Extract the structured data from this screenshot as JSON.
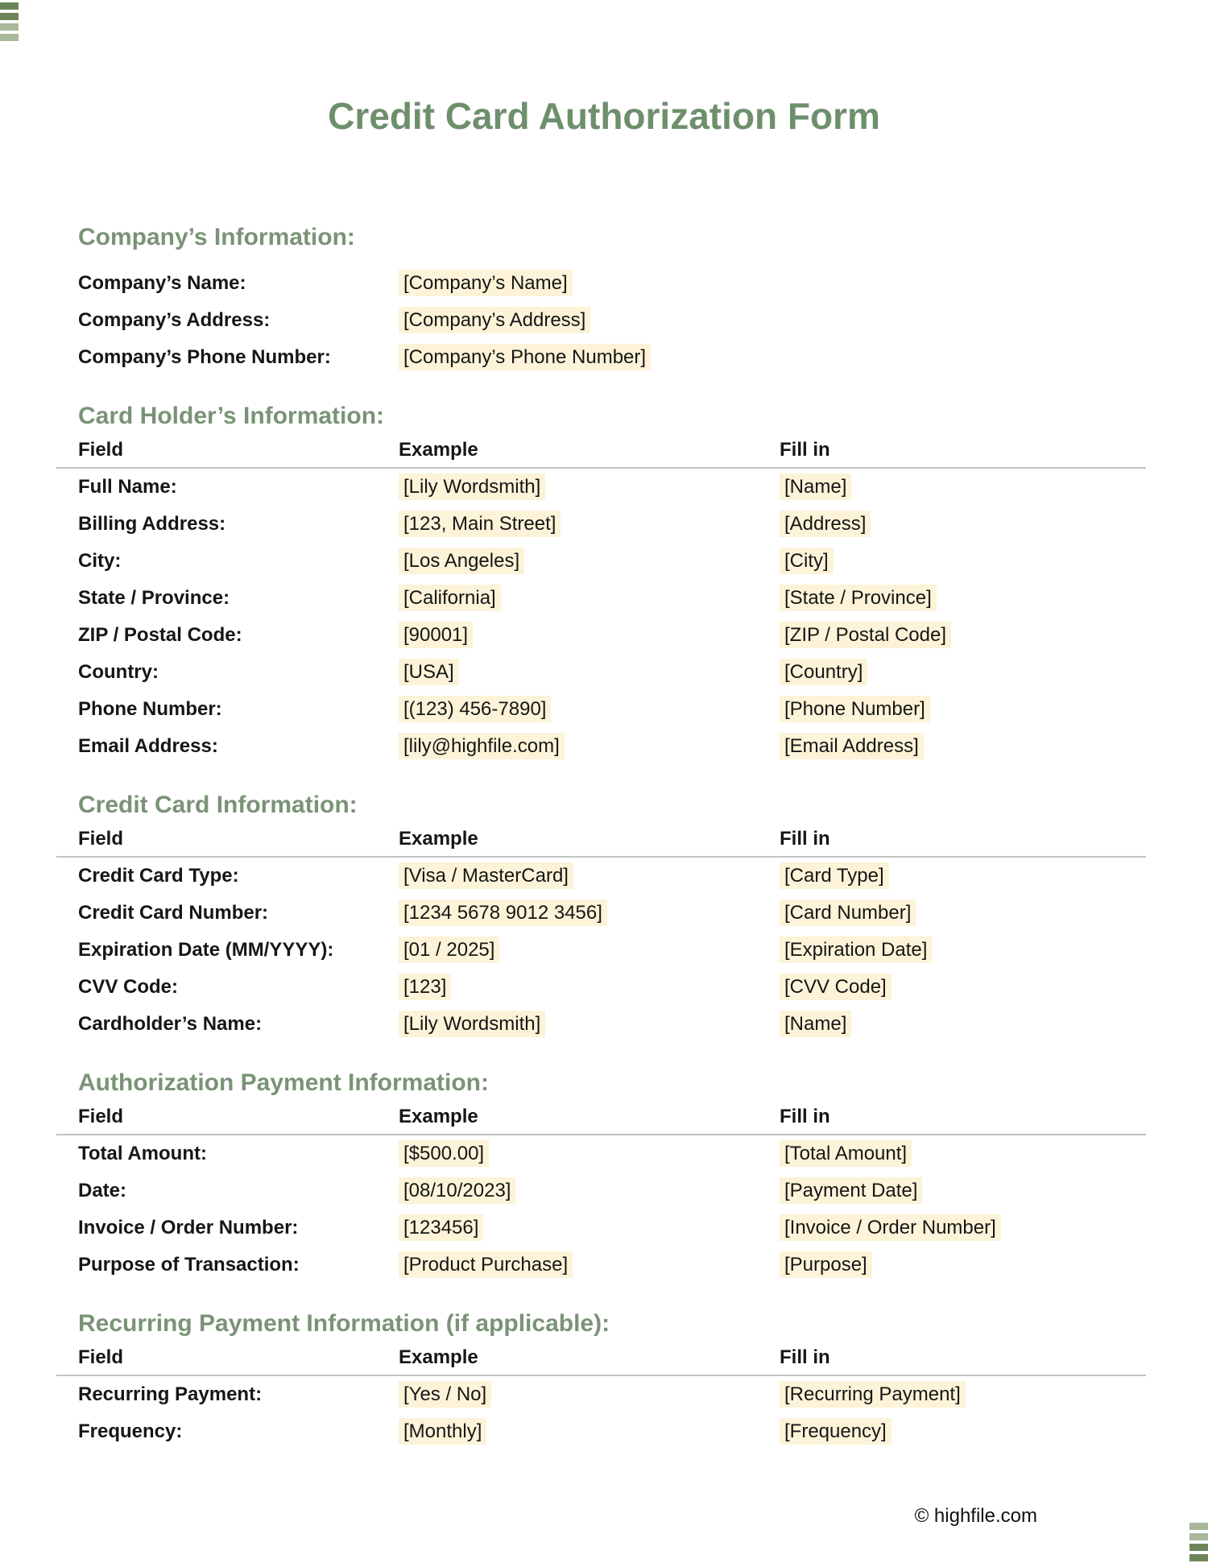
{
  "page": {
    "title": "Credit Card Authorization Form",
    "footer": "© highfile.com"
  },
  "table_headers": {
    "field": "Field",
    "example": "Example",
    "fill_in": "Fill in"
  },
  "company_info": {
    "heading": "Company’s Information:",
    "rows": [
      {
        "label": "Company’s Name:",
        "value": "[Company’s Name]"
      },
      {
        "label": "Company’s Address:",
        "value": "[Company’s Address]"
      },
      {
        "label": "Company’s Phone Number:",
        "value": "[Company’s Phone Number]"
      }
    ]
  },
  "card_holder_info": {
    "heading": "Card Holder’s Information:",
    "rows": [
      {
        "label": "Full Name:",
        "example": "[Lily Wordsmith]",
        "fill_in": "[Name]"
      },
      {
        "label": "Billing Address:",
        "example": "[123, Main Street]",
        "fill_in": "[Address]"
      },
      {
        "label": "City:",
        "example": "[Los Angeles]",
        "fill_in": "[City]"
      },
      {
        "label": "State / Province:",
        "example": "[California]",
        "fill_in": "[State / Province]"
      },
      {
        "label": "ZIP / Postal Code:",
        "example": "[90001]",
        "fill_in": "[ZIP / Postal Code]"
      },
      {
        "label": "Country:",
        "example": "[USA]",
        "fill_in": "[Country]"
      },
      {
        "label": "Phone Number:",
        "example": "[(123) 456-7890]",
        "fill_in": "[Phone Number]"
      },
      {
        "label": "Email Address:",
        "example": "[lily@highfile.com]",
        "fill_in": "[Email Address]"
      }
    ]
  },
  "credit_card_info": {
    "heading": "Credit Card Information:",
    "rows": [
      {
        "label": "Credit Card Type:",
        "example": "[Visa / MasterCard]",
        "fill_in": "[Card Type]"
      },
      {
        "label": "Credit Card Number:",
        "example": "[1234 5678 9012 3456]",
        "fill_in": "[Card Number]"
      },
      {
        "label": "Expiration Date (MM/YYYY):",
        "example": "[01 / 2025]",
        "fill_in": "[Expiration Date]"
      },
      {
        "label": "CVV Code:",
        "example": "[123]",
        "fill_in": "[CVV Code]"
      },
      {
        "label": "Cardholder’s Name:",
        "example": "[Lily Wordsmith]",
        "fill_in": "[Name]"
      }
    ]
  },
  "authorization_payment_info": {
    "heading": "Authorization Payment Information:",
    "rows": [
      {
        "label": "Total Amount:",
        "example": "[$500.00]",
        "fill_in": "[Total Amount]"
      },
      {
        "label": "Date:",
        "example": "[08/10/2023]",
        "fill_in": "[Payment Date]"
      },
      {
        "label": "Invoice / Order Number:",
        "example": "[123456]",
        "fill_in": "[Invoice / Order Number]"
      },
      {
        "label": "Purpose of Transaction:",
        "example": "[Product Purchase]",
        "fill_in": "[Purpose]"
      }
    ]
  },
  "recurring_payment_info": {
    "heading": "Recurring Payment Information (if applicable):",
    "rows": [
      {
        "label": "Recurring Payment:",
        "example": "[Yes / No]",
        "fill_in": "[Recurring Payment]"
      },
      {
        "label": "Frequency:",
        "example": "[Monthly]",
        "fill_in": "[Frequency]"
      }
    ]
  },
  "colors": {
    "title_green": "#6e8f6c",
    "heading_green": "#7a9377",
    "highlight_cream": "#fcf3d8",
    "logo_dark_green": "#6b8559",
    "logo_light_green": "#a9b79b",
    "rule_gray": "#c2c2c2"
  }
}
